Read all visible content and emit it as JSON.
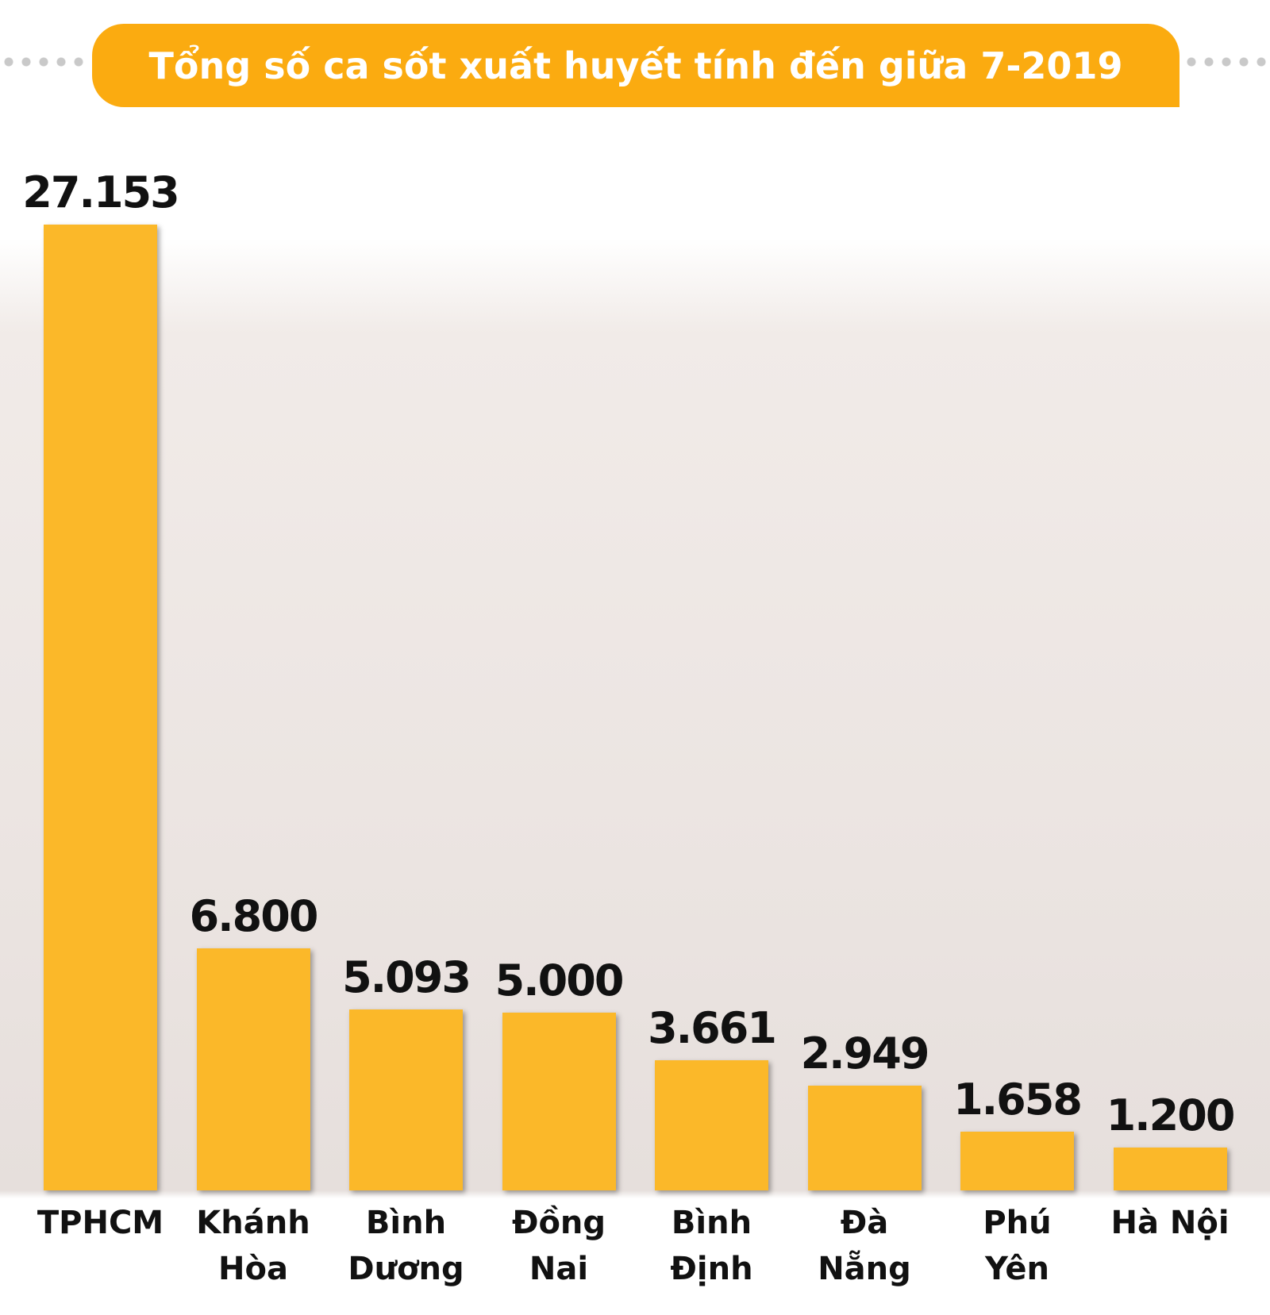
{
  "chart_data": {
    "type": "bar",
    "title": "Tổng số ca sốt xuất huyết tính đến giữa 7-2019",
    "categories": [
      "TPHCM",
      "Khánh Hòa",
      "Bình Dương",
      "Đồng Nai",
      "Bình Định",
      "Đà Nẵng",
      "Phú Yên",
      "Hà Nội"
    ],
    "values": [
      27153,
      6800,
      5093,
      5000,
      3661,
      2949,
      1658,
      1200
    ],
    "value_labels": [
      "27.153",
      "6.800",
      "5.093",
      "5.000",
      "3.661",
      "2.949",
      "1.658",
      "1.200"
    ],
    "color": "#fbb829"
  }
}
